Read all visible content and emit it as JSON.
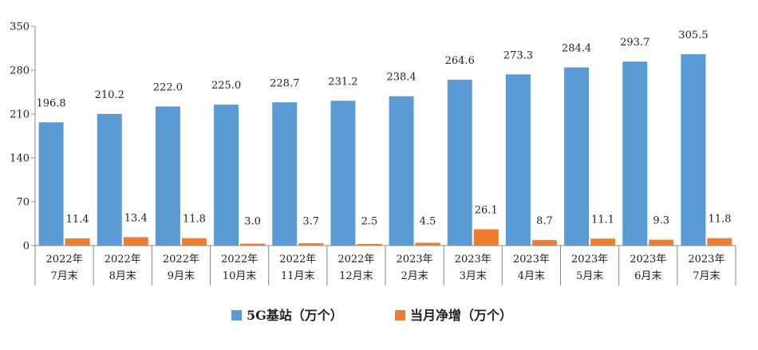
{
  "colors": {
    "series_5g": "#5b9bd5",
    "series_net": "#ed7d31",
    "axis": "#888888",
    "grid": "#d9d9d9"
  },
  "legend": {
    "item_5g": "5G基站（万个）",
    "item_net": "当月净增（万个）"
  },
  "chart_data": {
    "type": "bar",
    "categories": [
      [
        "2022年",
        "7月末"
      ],
      [
        "2022年",
        "8月末"
      ],
      [
        "2022年",
        "9月末"
      ],
      [
        "2022年",
        "10月末"
      ],
      [
        "2022年",
        "11月末"
      ],
      [
        "2022年",
        "12月末"
      ],
      [
        "2023年",
        "2月末"
      ],
      [
        "2023年",
        "3月末"
      ],
      [
        "2023年",
        "4月末"
      ],
      [
        "2023年",
        "5月末"
      ],
      [
        "2023年",
        "6月末"
      ],
      [
        "2023年",
        "7月末"
      ]
    ],
    "series": [
      {
        "name": "5G基站（万个）",
        "values": [
          196.8,
          210.2,
          222.0,
          225.0,
          228.7,
          231.2,
          238.4,
          264.6,
          273.3,
          284.4,
          293.7,
          305.5
        ],
        "labels": [
          "196.8",
          "210.2",
          "222.0",
          "225.0",
          "228.7",
          "231.2",
          "238.4",
          "264.6",
          "273.3",
          "284.4",
          "293.7",
          "305.5"
        ]
      },
      {
        "name": "当月净增（万个）",
        "values": [
          11.4,
          13.4,
          11.8,
          3.0,
          3.7,
          2.5,
          4.5,
          26.1,
          8.7,
          11.1,
          9.3,
          11.8
        ],
        "labels": [
          "11.4",
          "13.4",
          "11.8",
          "3.0",
          "3.7",
          "2.5",
          "4.5",
          "26.1",
          "8.7",
          "11.1",
          "9.3",
          "11.8"
        ]
      }
    ],
    "ylim": [
      0,
      350
    ],
    "yticks": [
      0,
      70,
      140,
      210,
      280,
      350
    ],
    "grid": false,
    "legend_position": "bottom-center",
    "title": "",
    "xlabel": "",
    "ylabel": ""
  }
}
